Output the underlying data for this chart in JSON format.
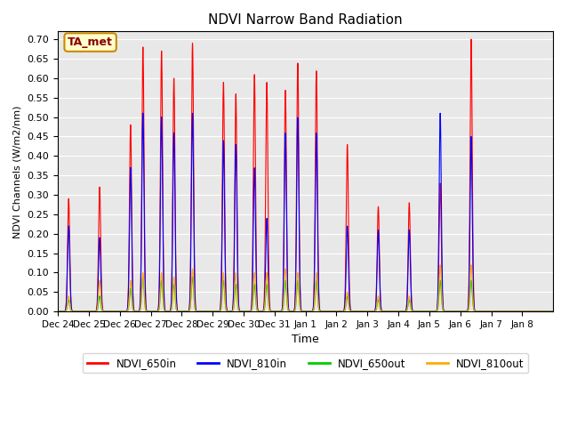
{
  "title": "NDVI Narrow Band Radiation",
  "ylabel": "NDVI Channels (W/m2/nm)",
  "xlabel": "Time",
  "annotation": "TA_met",
  "ylim": [
    0.0,
    0.72
  ],
  "yticks": [
    0.0,
    0.05,
    0.1,
    0.15,
    0.2,
    0.25,
    0.3,
    0.35,
    0.4,
    0.45,
    0.5,
    0.55,
    0.6,
    0.65,
    0.7
  ],
  "xtick_labels": [
    "Dec 24",
    "Dec 25",
    "Dec 26",
    "Dec 27",
    "Dec 28",
    "Dec 29",
    "Dec 30",
    "Dec 31",
    "Jan 1",
    "Jan 2",
    "Jan 3",
    "Jan 4",
    "Jan 5",
    "Jan 6",
    "Jan 7",
    "Jan 8"
  ],
  "colors": {
    "NDVI_650in": "#ff0000",
    "NDVI_810in": "#0000ff",
    "NDVI_650out": "#00cc00",
    "NDVI_810out": "#ffaa00"
  },
  "background_color": "#e8e8e8",
  "peak_sigma": 0.035,
  "num_days": 16,
  "points_per_day": 200,
  "peak_positions": [
    0.35,
    1.35,
    2.35,
    2.75,
    3.35,
    3.75,
    4.35,
    5.35,
    5.75,
    6.35,
    6.75,
    7.35,
    7.75,
    8.35,
    9.35,
    10.35,
    11.35,
    12.35,
    13.35,
    14.35,
    15.35
  ],
  "peaks_650in": [
    0.29,
    0.32,
    0.48,
    0.68,
    0.67,
    0.6,
    0.69,
    0.59,
    0.56,
    0.61,
    0.59,
    0.57,
    0.64,
    0.62,
    0.43,
    0.27,
    0.28,
    0.33,
    0.7,
    0.0,
    0.0
  ],
  "peaks_810in": [
    0.22,
    0.19,
    0.37,
    0.51,
    0.5,
    0.46,
    0.51,
    0.44,
    0.43,
    0.37,
    0.24,
    0.46,
    0.5,
    0.46,
    0.22,
    0.21,
    0.21,
    0.51,
    0.45,
    0.0,
    0.0
  ],
  "peaks_650out": [
    0.03,
    0.04,
    0.06,
    0.09,
    0.08,
    0.07,
    0.09,
    0.08,
    0.07,
    0.07,
    0.07,
    0.08,
    0.08,
    0.08,
    0.04,
    0.03,
    0.03,
    0.08,
    0.08,
    0.0,
    0.0
  ],
  "peaks_810out": [
    0.04,
    0.08,
    0.08,
    0.1,
    0.1,
    0.09,
    0.11,
    0.1,
    0.1,
    0.1,
    0.1,
    0.11,
    0.1,
    0.1,
    0.05,
    0.04,
    0.04,
    0.12,
    0.12,
    0.0,
    0.0
  ]
}
